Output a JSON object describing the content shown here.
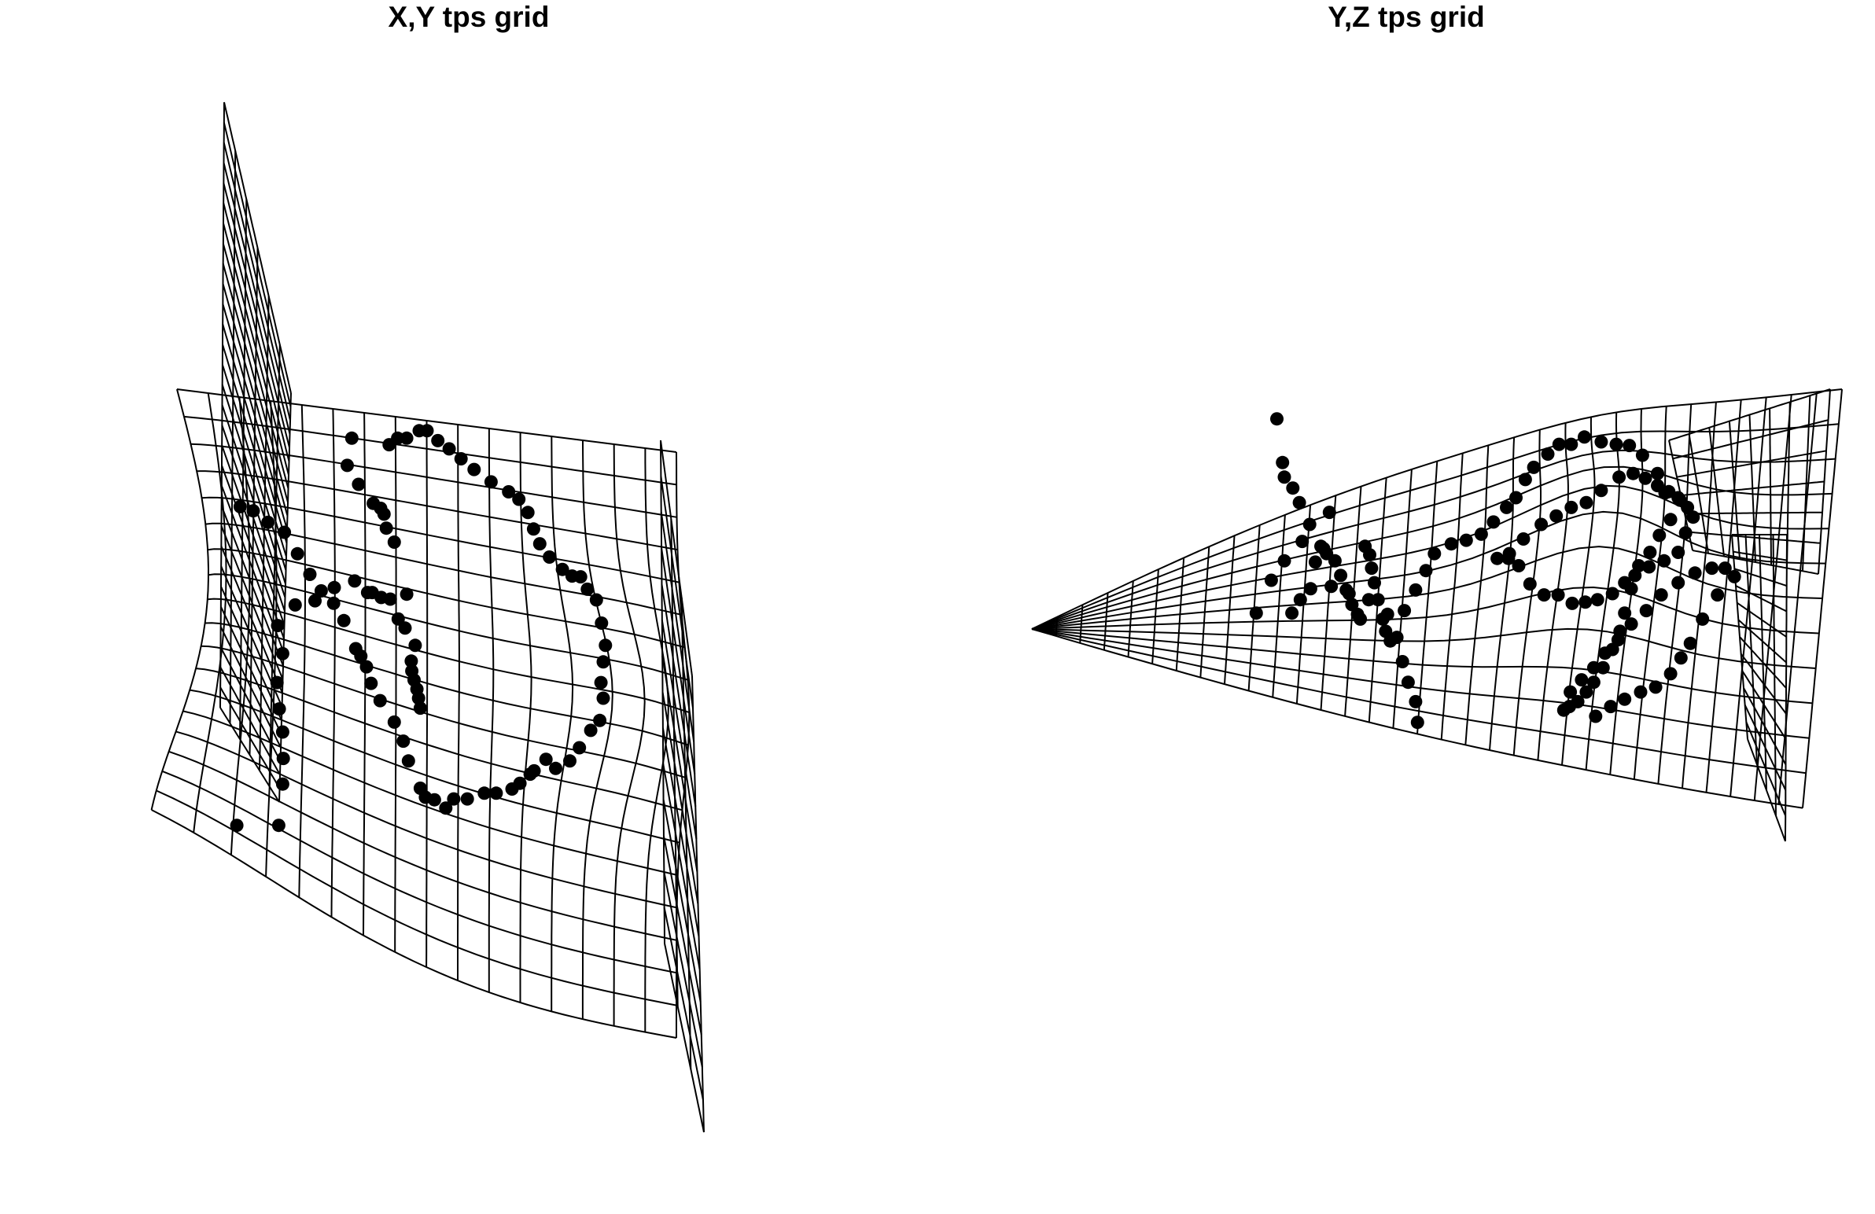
{
  "chart_data": [
    {
      "type": "scatter",
      "title": "X,Y tps grid",
      "grid": "deformed thin-plate-spline mesh (32 x 16 lines)",
      "colors": {
        "points": "#000000",
        "grid": "#000000",
        "background": "#ffffff"
      },
      "points": [
        [
          0.071,
          0.714
        ],
        [
          0.145,
          0.714
        ],
        [
          0.152,
          0.664
        ],
        [
          0.153,
          0.633
        ],
        [
          0.152,
          0.601
        ],
        [
          0.146,
          0.573
        ],
        [
          0.142,
          0.541
        ],
        [
          0.152,
          0.506
        ],
        [
          0.143,
          0.472
        ],
        [
          0.174,
          0.447
        ],
        [
          0.209,
          0.442
        ],
        [
          0.243,
          0.426
        ],
        [
          0.279,
          0.418
        ],
        [
          0.302,
          0.432
        ],
        [
          0.31,
          0.432
        ],
        [
          0.326,
          0.438
        ],
        [
          0.342,
          0.44
        ],
        [
          0.356,
          0.464
        ],
        [
          0.368,
          0.475
        ],
        [
          0.386,
          0.496
        ],
        [
          0.379,
          0.515
        ],
        [
          0.38,
          0.527
        ],
        [
          0.384,
          0.538
        ],
        [
          0.389,
          0.549
        ],
        [
          0.392,
          0.56
        ],
        [
          0.395,
          0.572
        ],
        [
          0.371,
          0.434
        ],
        [
          0.349,
          0.371
        ],
        [
          0.335,
          0.354
        ],
        [
          0.331,
          0.337
        ],
        [
          0.325,
          0.33
        ],
        [
          0.312,
          0.324
        ],
        [
          0.286,
          0.301
        ],
        [
          0.266,
          0.278
        ],
        [
          0.274,
          0.245
        ],
        [
          0.34,
          0.253
        ],
        [
          0.355,
          0.245
        ],
        [
          0.371,
          0.245
        ],
        [
          0.393,
          0.236
        ],
        [
          0.407,
          0.236
        ],
        [
          0.426,
          0.248
        ],
        [
          0.446,
          0.258
        ],
        [
          0.467,
          0.27
        ],
        [
          0.49,
          0.283
        ],
        [
          0.52,
          0.298
        ],
        [
          0.551,
          0.31
        ],
        [
          0.569,
          0.319
        ],
        [
          0.585,
          0.335
        ],
        [
          0.595,
          0.355
        ],
        [
          0.606,
          0.373
        ],
        [
          0.623,
          0.389
        ],
        [
          0.646,
          0.404
        ],
        [
          0.663,
          0.412
        ],
        [
          0.678,
          0.413
        ],
        [
          0.69,
          0.428
        ],
        [
          0.706,
          0.441
        ],
        [
          0.715,
          0.469
        ],
        [
          0.722,
          0.496
        ],
        [
          0.718,
          0.516
        ],
        [
          0.714,
          0.541
        ],
        [
          0.718,
          0.56
        ],
        [
          0.712,
          0.587
        ],
        [
          0.696,
          0.599
        ],
        [
          0.676,
          0.62
        ],
        [
          0.659,
          0.636
        ],
        [
          0.634,
          0.645
        ],
        [
          0.617,
          0.634
        ],
        [
          0.596,
          0.648
        ],
        [
          0.589,
          0.652
        ],
        [
          0.571,
          0.663
        ],
        [
          0.557,
          0.67
        ],
        [
          0.529,
          0.675
        ],
        [
          0.508,
          0.675
        ],
        [
          0.478,
          0.682
        ],
        [
          0.454,
          0.682
        ],
        [
          0.44,
          0.693
        ],
        [
          0.42,
          0.683
        ],
        [
          0.404,
          0.68
        ],
        [
          0.395,
          0.669
        ],
        [
          0.374,
          0.636
        ],
        [
          0.365,
          0.612
        ],
        [
          0.349,
          0.589
        ],
        [
          0.324,
          0.563
        ],
        [
          0.308,
          0.542
        ],
        [
          0.3,
          0.522
        ],
        [
          0.29,
          0.509
        ],
        [
          0.281,
          0.5
        ],
        [
          0.26,
          0.466
        ],
        [
          0.242,
          0.445
        ],
        [
          0.22,
          0.43
        ],
        [
          0.2,
          0.41
        ],
        [
          0.178,
          0.385
        ],
        [
          0.155,
          0.359
        ],
        [
          0.126,
          0.347
        ],
        [
          0.1,
          0.333
        ],
        [
          0.077,
          0.328
        ]
      ]
    },
    {
      "type": "scatter",
      "title": "Y,Z tps grid",
      "grid": "deformed thin-plate-spline mesh (32 x 16 lines)",
      "colors": {
        "points": "#000000",
        "grid": "#000000",
        "background": "#ffffff"
      },
      "points": [
        [
          0.362,
          0.345
        ],
        [
          0.368,
          0.381
        ],
        [
          0.37,
          0.393
        ],
        [
          0.379,
          0.402
        ],
        [
          0.386,
          0.414
        ],
        [
          0.397,
          0.432
        ],
        [
          0.409,
          0.45
        ],
        [
          0.415,
          0.456
        ],
        [
          0.424,
          0.462
        ],
        [
          0.43,
          0.474
        ],
        [
          0.436,
          0.486
        ],
        [
          0.442,
          0.498
        ],
        [
          0.448,
          0.506
        ],
        [
          0.451,
          0.51
        ],
        [
          0.456,
          0.45
        ],
        [
          0.461,
          0.457
        ],
        [
          0.463,
          0.468
        ],
        [
          0.466,
          0.48
        ],
        [
          0.47,
          0.494
        ],
        [
          0.475,
          0.51
        ],
        [
          0.478,
          0.52
        ],
        [
          0.483,
          0.528
        ],
        [
          0.418,
          0.422
        ],
        [
          0.412,
          0.452
        ],
        [
          0.398,
          0.485
        ],
        [
          0.387,
          0.494
        ],
        [
          0.378,
          0.505
        ],
        [
          0.34,
          0.505
        ],
        [
          0.356,
          0.478
        ],
        [
          0.37,
          0.462
        ],
        [
          0.389,
          0.446
        ],
        [
          0.403,
          0.463
        ],
        [
          0.42,
          0.483
        ],
        [
          0.439,
          0.489
        ],
        [
          0.46,
          0.494
        ],
        [
          0.48,
          0.506
        ],
        [
          0.49,
          0.525
        ],
        [
          0.496,
          0.545
        ],
        [
          0.502,
          0.562
        ],
        [
          0.51,
          0.578
        ],
        [
          0.512,
          0.595
        ],
        [
          0.498,
          0.503
        ],
        [
          0.51,
          0.486
        ],
        [
          0.521,
          0.47
        ],
        [
          0.53,
          0.456
        ],
        [
          0.548,
          0.448
        ],
        [
          0.564,
          0.445
        ],
        [
          0.58,
          0.44
        ],
        [
          0.593,
          0.43
        ],
        [
          0.607,
          0.418
        ],
        [
          0.617,
          0.41
        ],
        [
          0.627,
          0.395
        ],
        [
          0.636,
          0.385
        ],
        [
          0.651,
          0.374
        ],
        [
          0.663,
          0.366
        ],
        [
          0.676,
          0.366
        ],
        [
          0.69,
          0.36
        ],
        [
          0.708,
          0.364
        ],
        [
          0.724,
          0.366
        ],
        [
          0.738,
          0.367
        ],
        [
          0.752,
          0.375
        ],
        [
          0.768,
          0.39
        ],
        [
          0.776,
          0.406
        ],
        [
          0.792,
          0.412
        ],
        [
          0.8,
          0.418
        ],
        [
          0.806,
          0.426
        ],
        [
          0.798,
          0.439
        ],
        [
          0.79,
          0.455
        ],
        [
          0.775,
          0.462
        ],
        [
          0.759,
          0.467
        ],
        [
          0.744,
          0.474
        ],
        [
          0.733,
          0.48
        ],
        [
          0.72,
          0.489
        ],
        [
          0.704,
          0.494
        ],
        [
          0.691,
          0.496
        ],
        [
          0.677,
          0.497
        ],
        [
          0.662,
          0.49
        ],
        [
          0.647,
          0.49
        ],
        [
          0.632,
          0.481
        ],
        [
          0.62,
          0.466
        ],
        [
          0.609,
          0.46
        ],
        [
          0.597,
          0.46
        ],
        [
          0.61,
          0.456
        ],
        [
          0.625,
          0.444
        ],
        [
          0.644,
          0.432
        ],
        [
          0.66,
          0.425
        ],
        [
          0.676,
          0.418
        ],
        [
          0.692,
          0.414
        ],
        [
          0.708,
          0.404
        ],
        [
          0.727,
          0.393
        ],
        [
          0.742,
          0.39
        ],
        [
          0.755,
          0.394
        ],
        [
          0.768,
          0.4
        ],
        [
          0.78,
          0.405
        ],
        [
          0.79,
          0.41
        ],
        [
          0.782,
          0.428
        ],
        [
          0.77,
          0.441
        ],
        [
          0.76,
          0.455
        ],
        [
          0.748,
          0.466
        ],
        [
          0.74,
          0.485
        ],
        [
          0.733,
          0.505
        ],
        [
          0.728,
          0.52
        ],
        [
          0.72,
          0.535
        ],
        [
          0.71,
          0.55
        ],
        [
          0.7,
          0.562
        ],
        [
          0.692,
          0.57
        ],
        [
          0.683,
          0.578
        ],
        [
          0.674,
          0.582
        ],
        [
          0.668,
          0.585
        ],
        [
          0.675,
          0.57
        ],
        [
          0.687,
          0.56
        ],
        [
          0.7,
          0.55
        ],
        [
          0.712,
          0.538
        ],
        [
          0.726,
          0.527
        ],
        [
          0.74,
          0.514
        ],
        [
          0.756,
          0.503
        ],
        [
          0.772,
          0.49
        ],
        [
          0.79,
          0.48
        ],
        [
          0.808,
          0.472
        ],
        [
          0.826,
          0.468
        ],
        [
          0.84,
          0.468
        ],
        [
          0.85,
          0.475
        ],
        [
          0.832,
          0.49
        ],
        [
          0.816,
          0.51
        ],
        [
          0.803,
          0.53
        ],
        [
          0.793,
          0.542
        ],
        [
          0.782,
          0.555
        ],
        [
          0.766,
          0.566
        ],
        [
          0.75,
          0.57
        ],
        [
          0.733,
          0.576
        ],
        [
          0.718,
          0.582
        ],
        [
          0.702,
          0.59
        ]
      ]
    }
  ],
  "titles": {
    "left": "X,Y tps grid",
    "right": "Y,Z tps grid"
  }
}
